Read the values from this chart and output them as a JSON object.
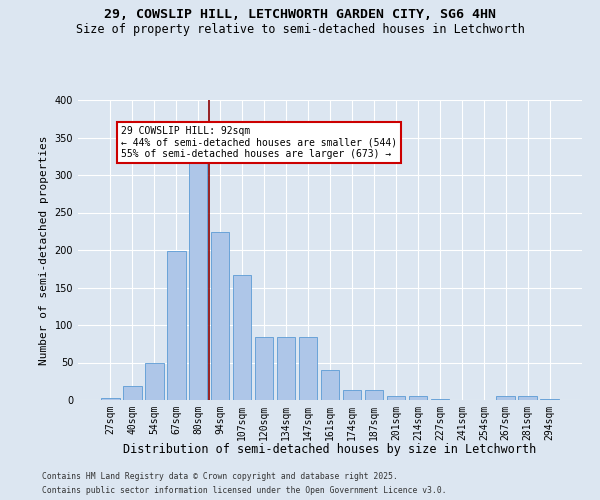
{
  "title1": "29, COWSLIP HILL, LETCHWORTH GARDEN CITY, SG6 4HN",
  "title2": "Size of property relative to semi-detached houses in Letchworth",
  "xlabel": "Distribution of semi-detached houses by size in Letchworth",
  "ylabel": "Number of semi-detached properties",
  "categories": [
    "27sqm",
    "40sqm",
    "54sqm",
    "67sqm",
    "80sqm",
    "94sqm",
    "107sqm",
    "120sqm",
    "134sqm",
    "147sqm",
    "161sqm",
    "174sqm",
    "187sqm",
    "201sqm",
    "214sqm",
    "227sqm",
    "241sqm",
    "254sqm",
    "267sqm",
    "281sqm",
    "294sqm"
  ],
  "values": [
    3,
    19,
    50,
    199,
    323,
    224,
    167,
    84,
    84,
    84,
    40,
    13,
    13,
    5,
    5,
    1,
    0,
    0,
    5,
    5,
    1
  ],
  "bar_color": "#aec6e8",
  "bar_edge_color": "#5b9bd5",
  "vline_x": 4.5,
  "vline_color": "#8b0000",
  "annotation_text": "29 COWSLIP HILL: 92sqm\n← 44% of semi-detached houses are smaller (544)\n55% of semi-detached houses are larger (673) →",
  "annotation_box_color": "#ffffff",
  "annotation_box_edge": "#cc0000",
  "ylim": [
    0,
    400
  ],
  "background_color": "#dce6f1",
  "plot_bg_color": "#dce6f1",
  "footer1": "Contains HM Land Registry data © Crown copyright and database right 2025.",
  "footer2": "Contains public sector information licensed under the Open Government Licence v3.0.",
  "title_fontsize": 9.5,
  "subtitle_fontsize": 8.5,
  "axis_label_fontsize": 8,
  "tick_fontsize": 7,
  "footer_fontsize": 5.8,
  "annotation_fontsize": 7
}
